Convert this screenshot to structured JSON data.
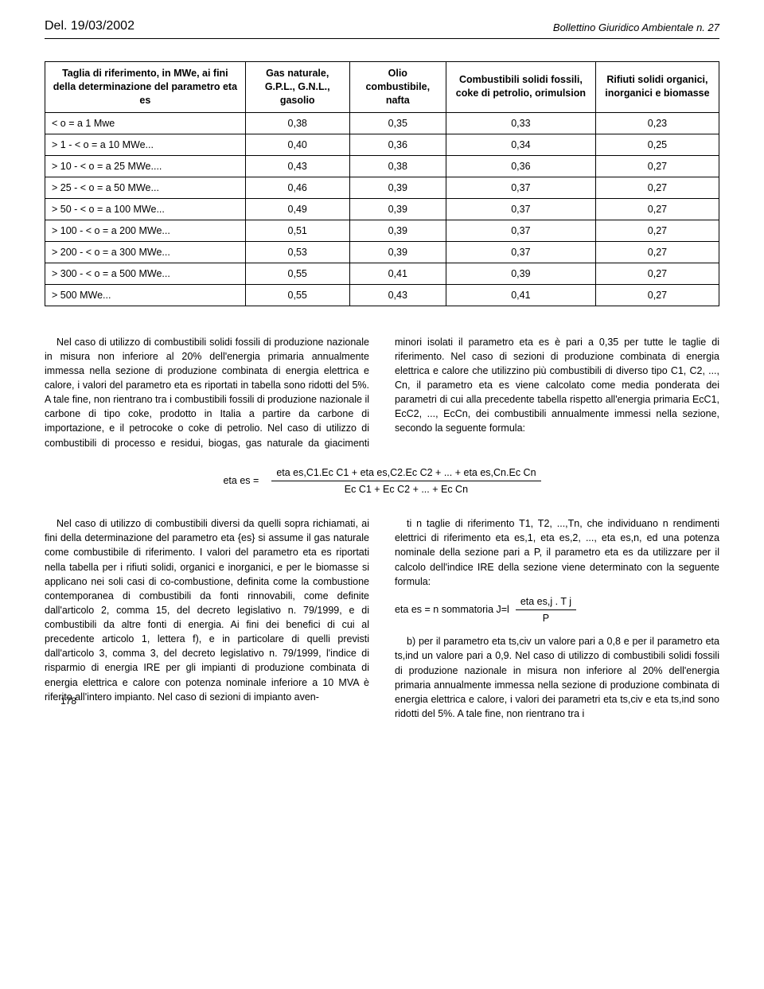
{
  "header": {
    "del_label": "Del. 19/03/2002",
    "bulletin": "Bollettino Giuridico Ambientale n. 27"
  },
  "table": {
    "columns": [
      "Taglia di riferimento, in MWe, ai fini della determinazione del parametro eta es",
      "Gas naturale, G.P.L., G.N.L., gasolio",
      "Olio combustibile, nafta",
      "Combustibili solidi fossili, coke di petrolio, orimulsion",
      "Rifiuti solidi organici, inorganici e biomasse"
    ],
    "rows": [
      {
        "label": "< o = a 1 Mwe",
        "v": [
          "0,38",
          "0,35",
          "0,33",
          "0,23"
        ]
      },
      {
        "label": "> 1 - < o = a 10 MWe...",
        "v": [
          "0,40",
          "0,36",
          "0,34",
          "0,25"
        ]
      },
      {
        "label": "> 10 - < o = a 25 MWe....",
        "v": [
          "0,43",
          "0,38",
          "0,36",
          "0,27"
        ]
      },
      {
        "label": "> 25 - < o = a 50 MWe...",
        "v": [
          "0,46",
          "0,39",
          "0,37",
          "0,27"
        ]
      },
      {
        "label": "> 50 - < o = a 100 MWe...",
        "v": [
          "0,49",
          "0,39",
          "0,37",
          "0,27"
        ]
      },
      {
        "label": "> 100 - < o = a 200 MWe...",
        "v": [
          "0,51",
          "0,39",
          "0,37",
          "0,27"
        ]
      },
      {
        "label": "> 200 - < o = a 300 MWe...",
        "v": [
          "0,53",
          "0,39",
          "0,37",
          "0,27"
        ]
      },
      {
        "label": "> 300 - < o = a 500 MWe...",
        "v": [
          "0,55",
          "0,41",
          "0,39",
          "0,27"
        ]
      },
      {
        "label": "> 500 MWe...",
        "v": [
          "0,55",
          "0,43",
          "0,41",
          "0,27"
        ]
      }
    ]
  },
  "para1": "Nel caso di utilizzo di combustibili solidi fossili di produzione nazionale in misura non inferiore al 20% dell'energia primaria annualmente immessa nella sezione di produzione combinata di energia elettrica e calore, i valori del parametro eta es riportati in tabella sono ridotti del 5%. A tale fine, non rientrano tra i combustibili fossili di produzione nazionale il carbone di tipo coke, prodotto in Italia a partire da carbone di importazione, e il petrocoke o coke di petrolio. Nel caso di utilizzo di combustibili di processo e residui, biogas, gas naturale da giacimenti minori isolati il parametro eta es è pari a 0,35 per tutte le taglie di riferimento. Nel caso di sezioni di produzione combinata di energia elettrica e calore che utilizzino più combustibili di diverso tipo C1, C2, ..., Cn, il parametro eta es viene calcolato come media ponderata dei parametri di cui alla precedente tabella rispetto all'energia primaria EcC1, EcC2, ..., EcCn, dei combustibili annualmente immessi nella sezione, secondo la seguente formula:",
  "formula1": {
    "lhs": "eta es =",
    "num": "eta es,C1.Ec C1 + eta es,C2.Ec C2 + ... + eta es,Cn.Ec Cn",
    "den": "Ec C1 + Ec C2 + ... + Ec Cn"
  },
  "para2a": "Nel caso di utilizzo di combustibili diversi da quelli sopra richiamati, ai fini della determinazione del parametro eta {es} si assume il gas naturale come combustibile di riferimento. I valori del parametro eta es riportati nella tabella per i rifiuti solidi, organici e inorganici, e per le biomasse si applicano nei soli casi di co-combustione, definita come la combustione contemporanea di combustibili da fonti rinnovabili, come definite dall'articolo 2, comma 15, del decreto legislativo n. 79/1999, e di combustibili da altre fonti di energia. Ai fini dei benefici di cui al precedente articolo 1, lettera f), e in particolare di quelli previsti dall'articolo 3, comma 3, del decreto legislativo n. 79/1999, l'indice di risparmio di energia IRE per gli impianti di produzione combinata di energia elettrica e calore con potenza nominale inferiore a 10 MVA è riferito all'intero impianto. Nel caso di sezioni di impianto aven-",
  "para2b": "ti n taglie di riferimento T1, T2, ...,Tn, che individuano n rendimenti elettrici di riferimento eta es,1, eta es,2, ..., eta es,n, ed una potenza nominale della sezione pari a P, il parametro eta es da utilizzare per il calcolo dell'indice IRE della sezione viene determinato con la seguente formula:",
  "formula2": {
    "lhs": "eta es = n sommatoria J=l",
    "num": "eta es,j . T j",
    "den": "P"
  },
  "para2c": "b) per il parametro eta ts,civ un valore pari a 0,8 e per il parametro eta ts,ind un valore pari a 0,9. Nel caso di utilizzo di combustibili solidi fossili di produzione nazionale in misura non inferiore al 20% dell'energia primaria annualmente immessa nella sezione di produzione combinata di energia elettrica e calore, i valori dei parametri eta ts,civ e eta ts,ind sono ridotti del 5%. A tale fine, non rientrano tra i",
  "page_number": "178"
}
